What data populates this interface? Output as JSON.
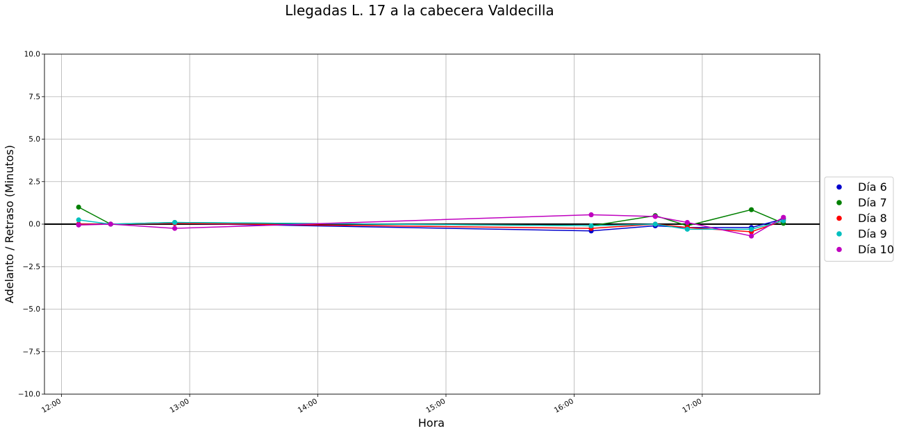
{
  "chart_data": {
    "type": "line",
    "title": "Llegadas L. 17 a la cabecera Valdecilla",
    "xlabel": "Hora",
    "ylabel": "Adelanto / Retraso (Minutos)",
    "x_ticks": [
      "12:00",
      "13:00",
      "14:00",
      "15:00",
      "16:00",
      "17:00"
    ],
    "y_ticks": [
      "10.0",
      "7.5",
      "5.0",
      "2.5",
      "0.0",
      "−2.5",
      "−5.0",
      "−7.5",
      "−10.0"
    ],
    "xlim": [
      "11:52",
      "17:55"
    ],
    "ylim": [
      -10,
      10
    ],
    "grid": true,
    "reference_line_y": 0,
    "legend_position": "right",
    "series": [
      {
        "name": "Día 6",
        "color": "#0000cc",
        "x": [
          "12:08",
          "12:23",
          "12:53",
          "16:08",
          "16:38",
          "16:53",
          "17:23",
          "17:38"
        ],
        "y": [
          0.0,
          0.0,
          0.05,
          -0.4,
          -0.1,
          -0.2,
          -0.2,
          0.3
        ]
      },
      {
        "name": "Día 7",
        "color": "#008000",
        "x": [
          "12:08",
          "12:23",
          "12:53",
          "16:08",
          "16:38",
          "16:53",
          "17:23",
          "17:38"
        ],
        "y": [
          1.0,
          0.0,
          0.1,
          -0.1,
          0.5,
          -0.1,
          0.85,
          0.05
        ]
      },
      {
        "name": "Día 8",
        "color": "#ff0000",
        "x": [
          "12:08",
          "12:23",
          "12:53",
          "16:08",
          "16:38",
          "16:53",
          "17:23",
          "17:38"
        ],
        "y": [
          0.0,
          0.0,
          0.05,
          -0.25,
          0.0,
          -0.2,
          -0.45,
          0.2
        ]
      },
      {
        "name": "Día 9",
        "color": "#00bfbf",
        "x": [
          "12:08",
          "12:23",
          "12:53",
          "16:08",
          "16:38",
          "16:53",
          "17:23",
          "17:38"
        ],
        "y": [
          0.25,
          0.0,
          0.1,
          -0.1,
          0.0,
          -0.3,
          -0.3,
          0.2
        ]
      },
      {
        "name": "Día 10",
        "color": "#bf00bf",
        "x": [
          "12:08",
          "12:23",
          "12:53",
          "16:08",
          "16:38",
          "16:53",
          "17:23",
          "17:38"
        ],
        "y": [
          -0.05,
          0.0,
          -0.25,
          0.55,
          0.45,
          0.1,
          -0.7,
          0.4
        ]
      }
    ]
  }
}
